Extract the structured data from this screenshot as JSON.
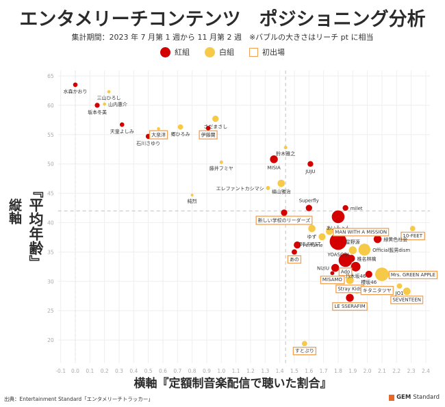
{
  "header": {
    "title": "エンタメリーチコンテンツ　ポジショニング分析",
    "subtitle": "集計期間：2023 年 7 月第 1 週から 11 月第 2 週　※バブルの大きさはリーチ pt に相当"
  },
  "legend": {
    "red_label": "紅組",
    "white_label": "白組",
    "first_label": "初出場"
  },
  "colors": {
    "red": "#d40000",
    "white": "#f7c948",
    "first_border": "#f0a050",
    "grid": "#eeeeee",
    "tick": "#aaaaaa",
    "ref_line": "#cccccc"
  },
  "axes": {
    "ylabel_col1": "縦軸",
    "ylabel_col2": "『平均年齢』",
    "xlabel": "横軸『定額制音楽配信で聴いた割合』"
  },
  "footer": {
    "source": "出典：Entertainment Standard「エンタメリーチトラッカー」",
    "brand_bold": "GEM",
    "brand_rest": "Standard"
  },
  "chart_data": {
    "type": "scatter",
    "title": "エンタメリーチコンテンツ　ポジショニング分析",
    "xlabel": "定額制音楽配信で聴いた割合",
    "ylabel": "平均年齢",
    "xlim": [
      -0.1,
      2.4
    ],
    "ylim": [
      17,
      65
    ],
    "xticks": [
      -0.1,
      0.0,
      0.1,
      0.2,
      0.3,
      0.4,
      0.5,
      0.6,
      0.7,
      0.8,
      0.9,
      1.0,
      1.1,
      1.2,
      1.3,
      1.4,
      1.5,
      1.6,
      1.7,
      1.8,
      1.9,
      2.0,
      2.1,
      2.2,
      2.3,
      2.4
    ],
    "yticks": [
      20,
      25,
      30,
      35,
      40,
      45,
      50,
      55,
      60,
      65
    ],
    "ref_lines": {
      "x": 1.44,
      "y": 42.0
    },
    "grid": true,
    "legend_position": "top-center",
    "points": [
      {
        "name": "水森かおり",
        "x": 0.0,
        "y": 63.5,
        "team": "red",
        "size": 1,
        "first": false,
        "lpos": "below"
      },
      {
        "name": "三山ひろし",
        "x": 0.23,
        "y": 62.3,
        "team": "white",
        "size": 0.5,
        "first": false,
        "lpos": "below"
      },
      {
        "name": "山内惠介",
        "x": 0.2,
        "y": 60.2,
        "team": "white",
        "size": 0.5,
        "first": false,
        "lpos": "right"
      },
      {
        "name": "坂本冬美",
        "x": 0.15,
        "y": 60.0,
        "team": "red",
        "size": 1.2,
        "first": false,
        "lpos": "below"
      },
      {
        "name": "天童よしみ",
        "x": 0.32,
        "y": 56.7,
        "team": "red",
        "size": 1,
        "first": false,
        "lpos": "below"
      },
      {
        "name": "石川さゆり",
        "x": 0.5,
        "y": 54.7,
        "team": "red",
        "size": 1.3,
        "first": false,
        "lpos": "below"
      },
      {
        "name": "大泉洋",
        "x": 0.57,
        "y": 56.0,
        "team": "white",
        "size": 0.5,
        "first": true,
        "lpos": "below"
      },
      {
        "name": "郷ひろみ",
        "x": 0.72,
        "y": 56.3,
        "team": "white",
        "size": 1.4,
        "first": false,
        "lpos": "below"
      },
      {
        "name": "伊藤蘭",
        "x": 0.91,
        "y": 56.1,
        "team": "red",
        "size": 1,
        "first": true,
        "lpos": "below"
      },
      {
        "name": "さだまさし",
        "x": 0.96,
        "y": 57.7,
        "team": "white",
        "size": 2,
        "first": false,
        "lpos": "below"
      },
      {
        "name": "藤井フミヤ",
        "x": 1.0,
        "y": 50.3,
        "team": "white",
        "size": 0.6,
        "first": false,
        "lpos": "below"
      },
      {
        "name": "鈴木雅之",
        "x": 1.44,
        "y": 52.8,
        "team": "white",
        "size": 0.6,
        "first": false,
        "lpos": "below"
      },
      {
        "name": "MISIA",
        "x": 1.36,
        "y": 50.8,
        "team": "red",
        "size": 3,
        "first": false,
        "lpos": "below"
      },
      {
        "name": "JUJU",
        "x": 1.61,
        "y": 50.0,
        "team": "red",
        "size": 1.6,
        "first": false,
        "lpos": "below"
      },
      {
        "name": "エレファントカシマシ",
        "x": 1.32,
        "y": 45.9,
        "team": "white",
        "size": 0.8,
        "first": false,
        "lpos": "left"
      },
      {
        "name": "福山雅治",
        "x": 1.41,
        "y": 46.7,
        "team": "white",
        "size": 2.6,
        "first": false,
        "lpos": "below"
      },
      {
        "name": "純烈",
        "x": 0.8,
        "y": 44.7,
        "team": "white",
        "size": 0.4,
        "first": false,
        "lpos": "below"
      },
      {
        "name": "Superfly",
        "x": 1.6,
        "y": 42.5,
        "team": "red",
        "size": 2,
        "first": false,
        "lpos": "above"
      },
      {
        "name": "milet",
        "x": 1.85,
        "y": 42.5,
        "team": "red",
        "size": 1.6,
        "first": false,
        "lpos": "right"
      },
      {
        "name": "新しい学校のリーダーズ",
        "x": 1.43,
        "y": 41.7,
        "team": "red",
        "size": 2,
        "first": true,
        "lpos": "below"
      },
      {
        "name": "あいみょん",
        "x": 1.8,
        "y": 41.0,
        "team": "red",
        "size": 8,
        "first": false,
        "lpos": "below"
      },
      {
        "name": "ゆず",
        "x": 1.62,
        "y": 39.0,
        "team": "white",
        "size": 2.6,
        "first": false,
        "lpos": "below"
      },
      {
        "name": "MAN WITH A MISSION",
        "x": 1.74,
        "y": 38.5,
        "team": "white",
        "size": 2.4,
        "first": true,
        "lpos": "right"
      },
      {
        "name": "10-FEET",
        "x": 2.31,
        "y": 39.0,
        "team": "white",
        "size": 1.4,
        "first": true,
        "lpos": "below"
      },
      {
        "name": "BE:FIRST",
        "x": 1.69,
        "y": 37.6,
        "team": "white",
        "size": 2.4,
        "first": false,
        "lpos": "below-left"
      },
      {
        "name": "YOASOBI",
        "x": 1.8,
        "y": 36.8,
        "team": "red",
        "size": 14,
        "first": false,
        "lpos": "below"
      },
      {
        "name": "緑黄色社会",
        "x": 2.07,
        "y": 37.2,
        "team": "red",
        "size": 3,
        "first": false,
        "lpos": "right"
      },
      {
        "name": "Perfume",
        "x": 1.52,
        "y": 36.2,
        "team": "red",
        "size": 2.4,
        "first": false,
        "lpos": "right"
      },
      {
        "name": "星野源",
        "x": 1.9,
        "y": 35.3,
        "team": "white",
        "size": 3,
        "first": false,
        "lpos": "above"
      },
      {
        "name": "Official髭男dism",
        "x": 1.98,
        "y": 35.4,
        "team": "white",
        "size": 7,
        "first": false,
        "lpos": "right"
      },
      {
        "name": "あの",
        "x": 1.5,
        "y": 35.0,
        "team": "red",
        "size": 1.4,
        "first": true,
        "lpos": "below"
      },
      {
        "name": "椎名林檎",
        "x": 1.89,
        "y": 33.9,
        "team": "red",
        "size": 2.6,
        "first": false,
        "lpos": "right"
      },
      {
        "name": "Ado",
        "x": 1.85,
        "y": 33.6,
        "team": "red",
        "size": 9,
        "first": true,
        "lpos": "below"
      },
      {
        "name": "NiziU",
        "x": 1.78,
        "y": 32.3,
        "team": "red",
        "size": 3,
        "first": false,
        "lpos": "left"
      },
      {
        "name": "乃木坂46",
        "x": 1.92,
        "y": 32.5,
        "team": "red",
        "size": 4.5,
        "first": false,
        "lpos": "below"
      },
      {
        "name": "MISAMO",
        "x": 1.76,
        "y": 31.4,
        "team": "red",
        "size": 0.8,
        "first": true,
        "lpos": "below"
      },
      {
        "name": "Mrs. GREEN APPLE",
        "x": 2.1,
        "y": 31.2,
        "team": "white",
        "size": 9,
        "first": true,
        "lpos": "right"
      },
      {
        "name": "櫻坂46",
        "x": 2.01,
        "y": 31.2,
        "team": "red",
        "size": 2.4,
        "first": false,
        "lpos": "below"
      },
      {
        "name": "Stray Kids",
        "x": 1.88,
        "y": 30.2,
        "team": "white",
        "size": 3,
        "first": true,
        "lpos": "below"
      },
      {
        "name": "JO1",
        "x": 2.22,
        "y": 29.2,
        "team": "white",
        "size": 1.4,
        "first": false,
        "lpos": "below"
      },
      {
        "name": "キタニタツヤ",
        "x": 1.93,
        "y": 28.5,
        "team": "white",
        "size": 2.4,
        "first": true,
        "lpos": "right"
      },
      {
        "name": "SEVENTEEN",
        "x": 2.27,
        "y": 28.3,
        "team": "white",
        "size": 2.8,
        "first": true,
        "lpos": "below"
      },
      {
        "name": "LE SSERAFIM",
        "x": 1.88,
        "y": 27.2,
        "team": "red",
        "size": 3,
        "first": true,
        "lpos": "below"
      },
      {
        "name": "すとぷり",
        "x": 1.57,
        "y": 19.4,
        "team": "white",
        "size": 1.4,
        "first": true,
        "lpos": "below"
      }
    ]
  }
}
